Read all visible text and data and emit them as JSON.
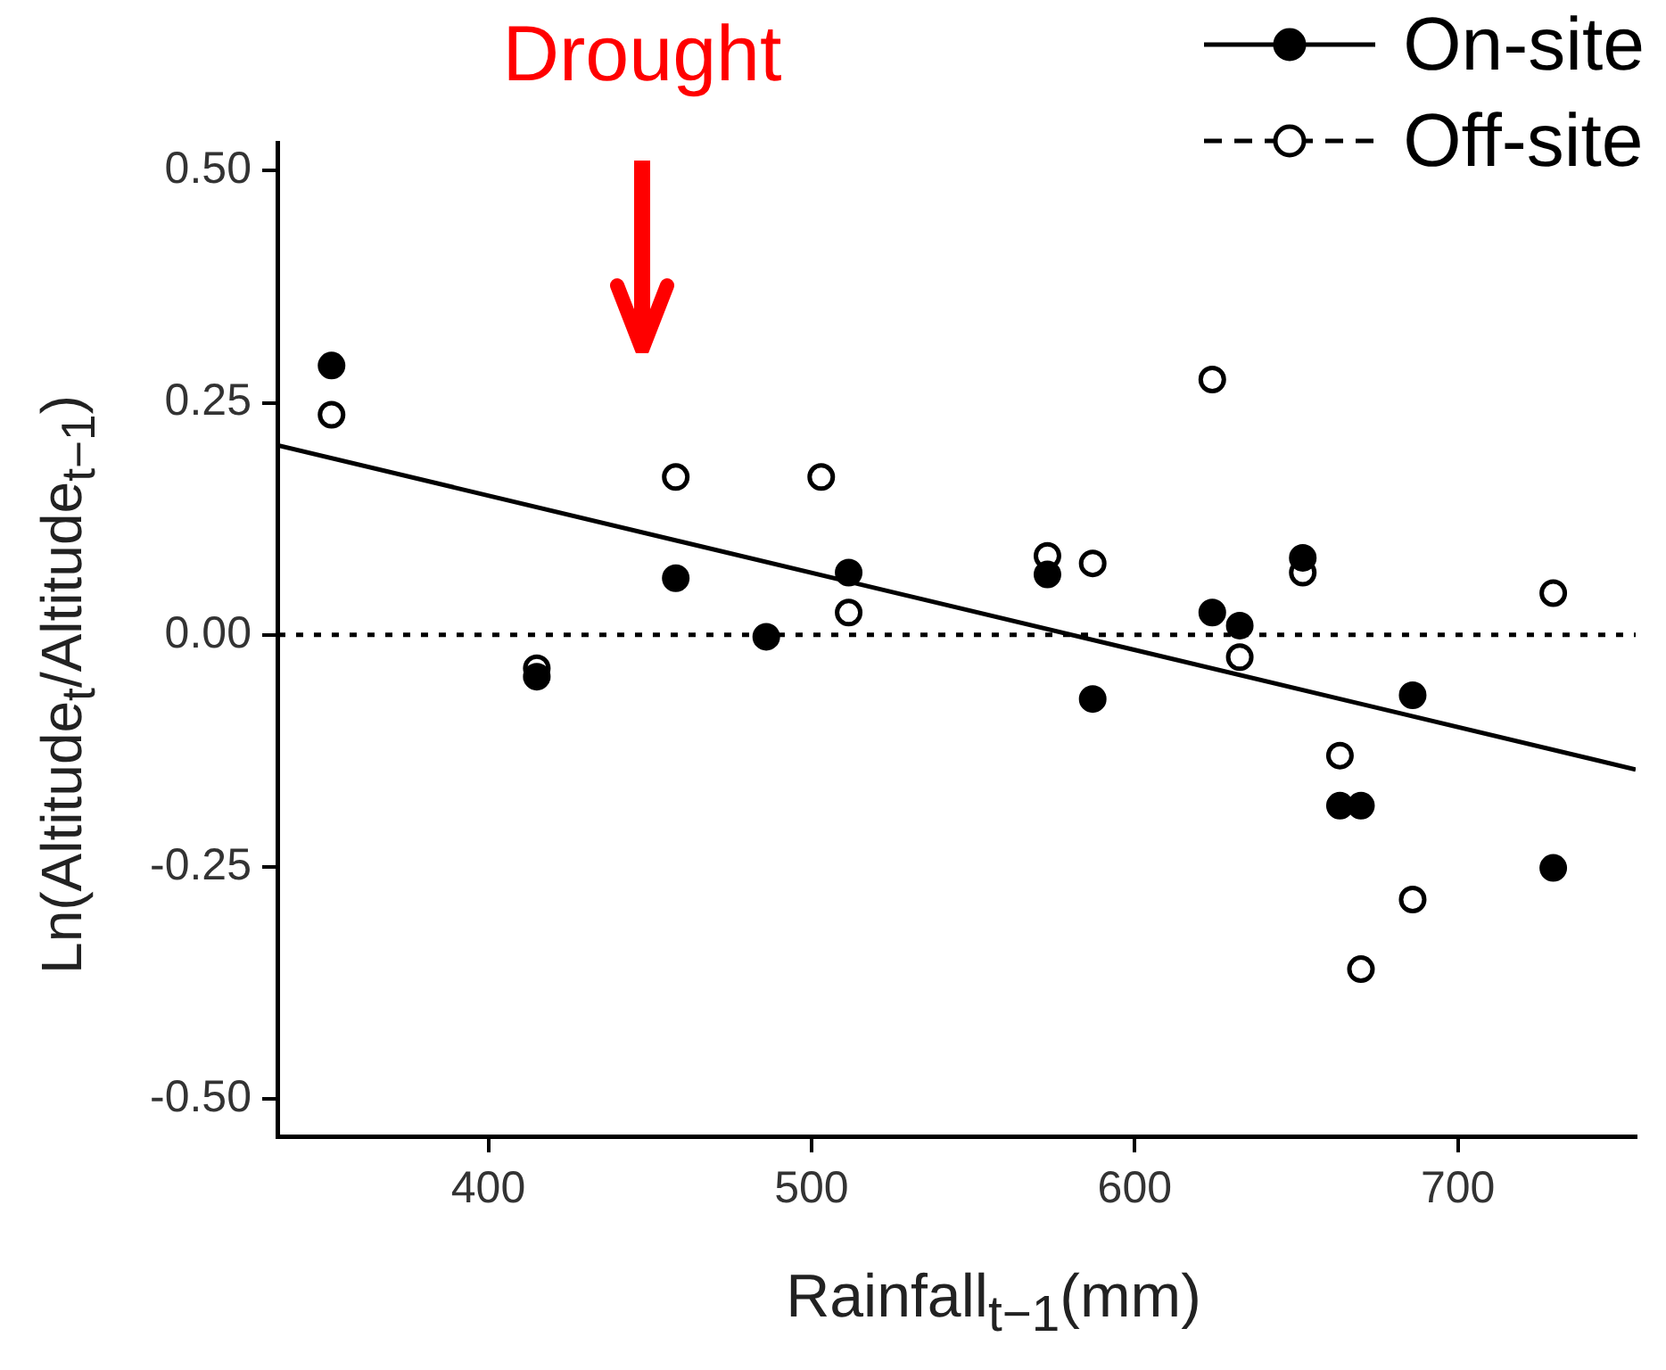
{
  "chart_data": {
    "type": "scatter",
    "xlabel": "Rainfall$_{t−1}$(mm)",
    "ylabel": "Ln(Altitude$_{t}$/Altitude$_{t−1}$)",
    "xlim": [
      335,
      755
    ],
    "xticks": [
      400,
      500,
      600,
      700
    ],
    "ylim": [
      -0.54,
      0.53
    ],
    "yticks": [
      {
        "value": -0.5,
        "label": "-0.50"
      },
      {
        "value": -0.25,
        "label": "-0.25"
      },
      {
        "value": 0,
        "label": "0.00"
      },
      {
        "value": 0.25,
        "label": "0.25"
      },
      {
        "value": 0.5,
        "label": "0.50"
      }
    ],
    "grid": false,
    "legend": "top right",
    "marker": "circle",
    "series": [
      {
        "name": "On-site",
        "color": "#000000",
        "line_style": "solid",
        "x": [
          351.5,
          415,
          458,
          486,
          511.5,
          573,
          587,
          624,
          632.5,
          652,
          663.5,
          670,
          686,
          729.5
        ],
        "values": [
          0.29,
          -0.045,
          0.061,
          -0.002,
          0.067,
          0.065,
          -0.069,
          0.024,
          0.01,
          0.083,
          -0.184,
          -0.184,
          -0.065,
          -0.251
        ]
      },
      {
        "name": "Off-site",
        "color": "#ffffff",
        "line_style": "dashed",
        "x": [
          351.5,
          415,
          458,
          503,
          511.5,
          573,
          587,
          624,
          632.5,
          652,
          663.5,
          670,
          686,
          729.5
        ],
        "values": [
          0.237,
          -0.036,
          0.17,
          0.17,
          0.024,
          0.085,
          0.077,
          0.275,
          -0.024,
          0.067,
          -0.13,
          -0.36,
          -0.285,
          0.045
        ]
      },
      {
        "type": "line",
        "color": "#000000",
        "line_style": "solid",
        "marker": "none",
        "x": [
          335,
          755
        ],
        "values": [
          0.204,
          -0.145
        ]
      }
    ],
    "ref_lines": [
      {
        "axis": "y",
        "value": 0,
        "color": "#000000",
        "line_style": "dotted"
      }
    ],
    "annotations": [
      "Drought"
    ]
  }
}
